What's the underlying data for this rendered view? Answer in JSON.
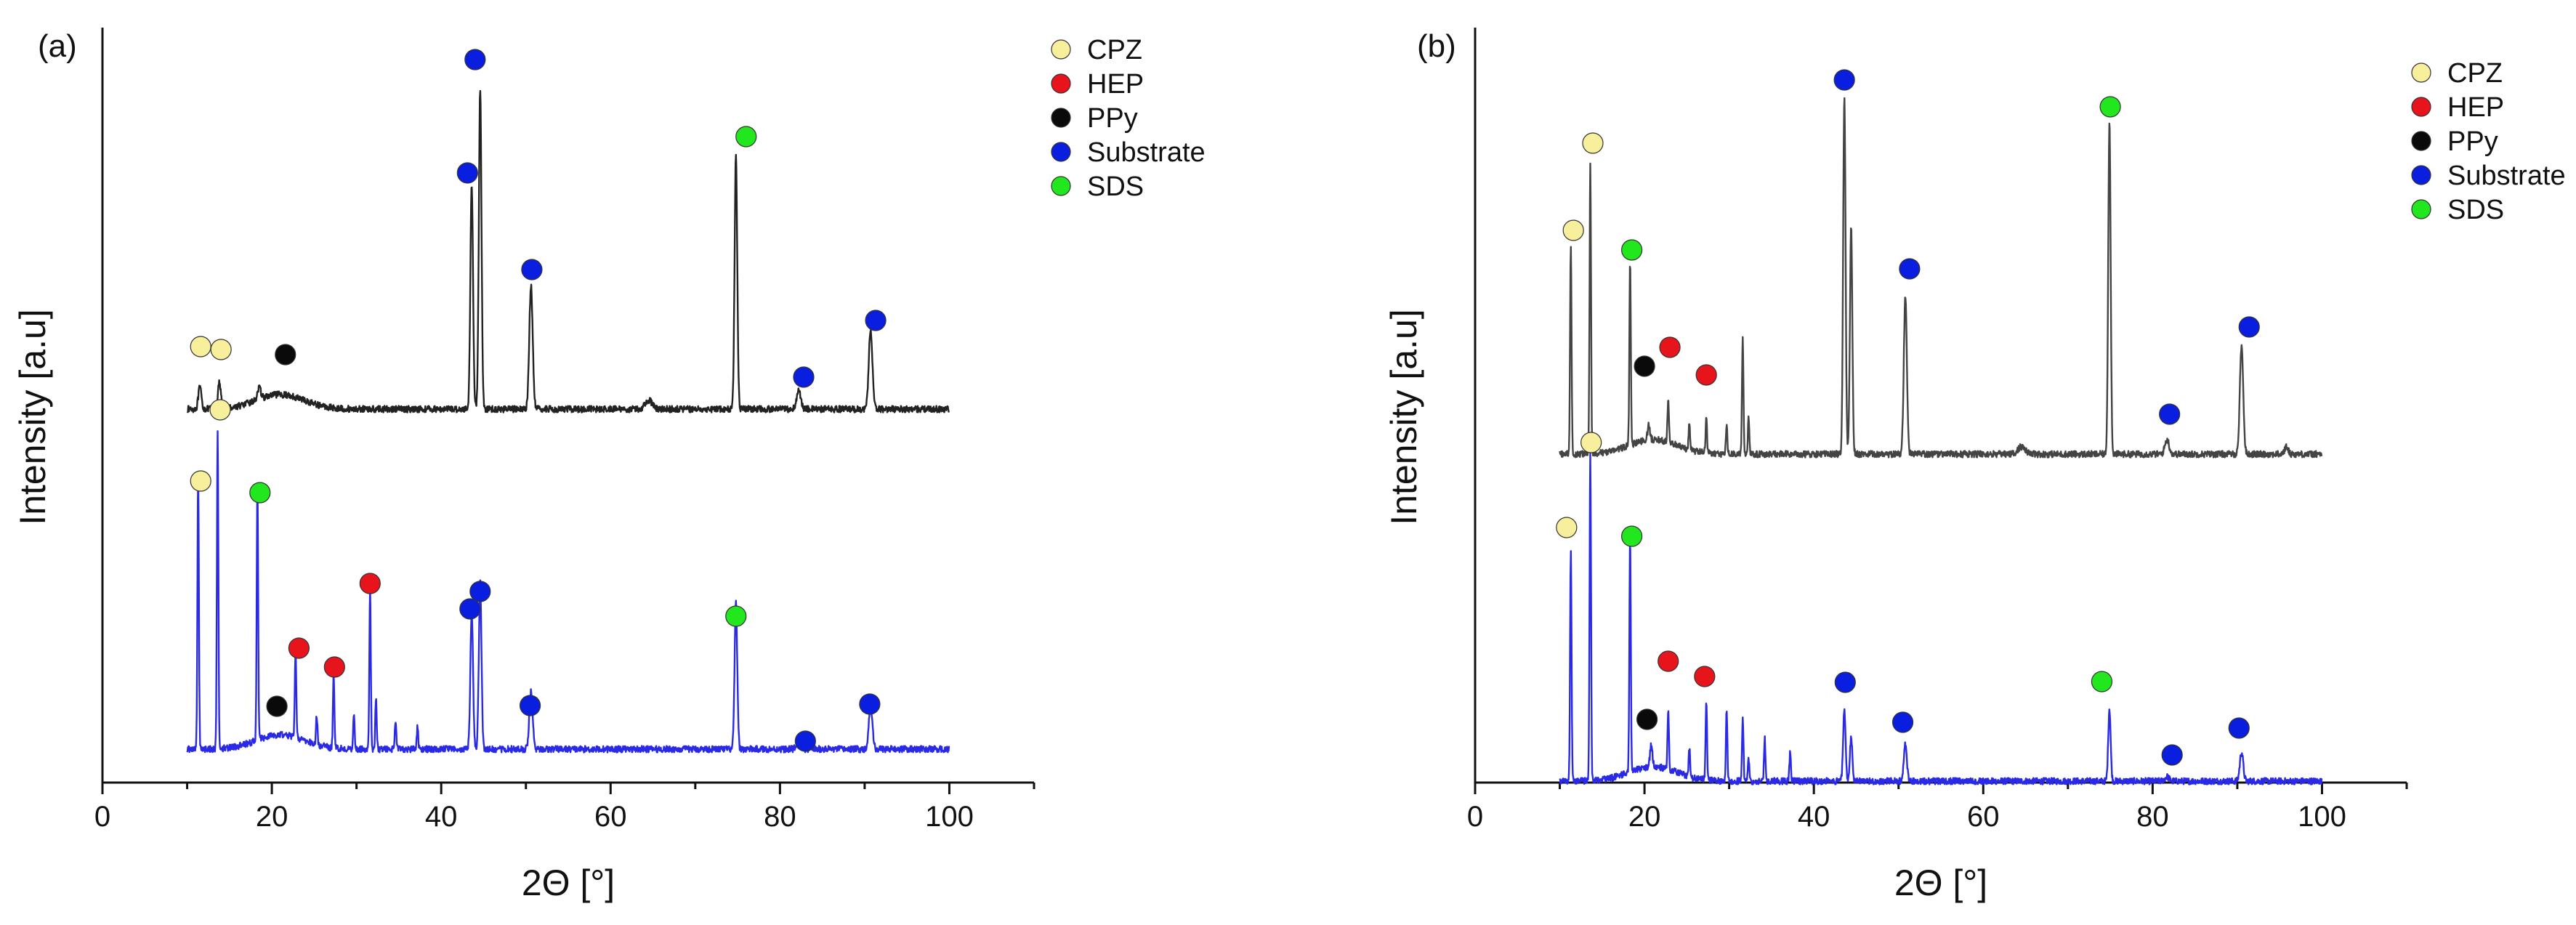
{
  "chart_data": [
    {
      "type": "line",
      "panel_label": "(a)",
      "xlabel": "2Θ [°]",
      "ylabel": "Intensity [a.u]",
      "xlim": [
        0,
        110
      ],
      "xticks": [
        0,
        20,
        40,
        60,
        80,
        100
      ],
      "ylim": [
        0,
        1
      ],
      "legend": {
        "position": "top-right",
        "entries": [
          {
            "label": "CPZ",
            "color": "#f7ef9c"
          },
          {
            "label": "HEP",
            "color": "#e8141c"
          },
          {
            "label": "PPy",
            "color": "#0a0a0a"
          },
          {
            "label": "Substrate",
            "color": "#0a1ee0"
          },
          {
            "label": "SDS",
            "color": "#22e61e"
          }
        ]
      },
      "series": [
        {
          "name": "top trace",
          "color": "#222222",
          "baseline": 0.512,
          "xrange": [
            10,
            100
          ],
          "peaks": [
            {
              "x": 11.5,
              "h": 0.03,
              "w": 0.25
            },
            {
              "x": 13.8,
              "h": 0.035,
              "w": 0.25
            },
            {
              "x": 18.5,
              "h": 0.015,
              "w": 0.3
            },
            {
              "x": 43.6,
              "h": 0.31,
              "w": 0.22
            },
            {
              "x": 44.6,
              "h": 0.44,
              "w": 0.22
            },
            {
              "x": 50.6,
              "h": 0.17,
              "w": 0.28
            },
            {
              "x": 64.5,
              "h": 0.012,
              "w": 0.6
            },
            {
              "x": 74.8,
              "h": 0.35,
              "w": 0.22
            },
            {
              "x": 82.2,
              "h": 0.025,
              "w": 0.35
            },
            {
              "x": 90.7,
              "h": 0.11,
              "w": 0.3
            }
          ]
        },
        {
          "name": "bottom trace",
          "color": "#2a2ae6",
          "baseline": 0.044,
          "xrange": [
            10,
            100
          ],
          "peaks": [
            {
              "x": 11.3,
              "h": 0.38,
              "w": 0.12
            },
            {
              "x": 13.6,
              "h": 0.44,
              "w": 0.12
            },
            {
              "x": 18.3,
              "h": 0.35,
              "w": 0.12
            },
            {
              "x": 22.8,
              "h": 0.12,
              "w": 0.12
            },
            {
              "x": 25.3,
              "h": 0.04,
              "w": 0.12
            },
            {
              "x": 27.3,
              "h": 0.1,
              "w": 0.12
            },
            {
              "x": 29.7,
              "h": 0.05,
              "w": 0.12
            },
            {
              "x": 31.6,
              "h": 0.22,
              "w": 0.12
            },
            {
              "x": 32.3,
              "h": 0.07,
              "w": 0.12
            },
            {
              "x": 34.6,
              "h": 0.04,
              "w": 0.12
            },
            {
              "x": 37.2,
              "h": 0.03,
              "w": 0.12
            },
            {
              "x": 43.6,
              "h": 0.19,
              "w": 0.22
            },
            {
              "x": 44.6,
              "h": 0.23,
              "w": 0.22
            },
            {
              "x": 50.6,
              "h": 0.08,
              "w": 0.28
            },
            {
              "x": 74.8,
              "h": 0.2,
              "w": 0.22
            },
            {
              "x": 82.2,
              "h": 0.012,
              "w": 0.35
            },
            {
              "x": 90.7,
              "h": 0.06,
              "w": 0.3
            }
          ]
        }
      ],
      "markers": [
        {
          "phase": "CPZ",
          "x": 11.6,
          "y": 0.598
        },
        {
          "phase": "CPZ",
          "x": 14.0,
          "y": 0.594
        },
        {
          "phase": "PPy",
          "x": 21.6,
          "y": 0.587
        },
        {
          "phase": "Substrate",
          "x": 44.0,
          "y": 0.993
        },
        {
          "phase": "Substrate",
          "x": 43.1,
          "y": 0.837
        },
        {
          "phase": "Substrate",
          "x": 50.7,
          "y": 0.704
        },
        {
          "phase": "SDS",
          "x": 76.0,
          "y": 0.887
        },
        {
          "phase": "Substrate",
          "x": 82.8,
          "y": 0.556
        },
        {
          "phase": "Substrate",
          "x": 91.3,
          "y": 0.634
        },
        {
          "phase": "CPZ",
          "x": 13.9,
          "y": 0.511
        },
        {
          "phase": "CPZ",
          "x": 11.6,
          "y": 0.413
        },
        {
          "phase": "SDS",
          "x": 18.6,
          "y": 0.397
        },
        {
          "phase": "HEP",
          "x": 31.6,
          "y": 0.272
        },
        {
          "phase": "HEP",
          "x": 23.2,
          "y": 0.183
        },
        {
          "phase": "HEP",
          "x": 27.4,
          "y": 0.157
        },
        {
          "phase": "PPy",
          "x": 20.6,
          "y": 0.103
        },
        {
          "phase": "Substrate",
          "x": 44.6,
          "y": 0.261
        },
        {
          "phase": "Substrate",
          "x": 43.4,
          "y": 0.237
        },
        {
          "phase": "SDS",
          "x": 74.8,
          "y": 0.227
        },
        {
          "phase": "Substrate",
          "x": 50.5,
          "y": 0.104
        },
        {
          "phase": "Substrate",
          "x": 83.0,
          "y": 0.055
        },
        {
          "phase": "Substrate",
          "x": 90.6,
          "y": 0.106
        }
      ]
    },
    {
      "type": "line",
      "panel_label": "(b)",
      "xlabel": "2Θ [°]",
      "ylabel": "Intensity [a.u]",
      "xlim": [
        0,
        110
      ],
      "xticks": [
        0,
        20,
        40,
        60,
        80,
        100
      ],
      "ylim": [
        0,
        1
      ],
      "legend": {
        "position": "top-right",
        "entries": [
          {
            "label": "CPZ",
            "color": "#f7ef9c"
          },
          {
            "label": "HEP",
            "color": "#e8141c"
          },
          {
            "label": "PPy",
            "color": "#0a0a0a"
          },
          {
            "label": "Substrate",
            "color": "#0a1ee0"
          },
          {
            "label": "SDS",
            "color": "#22e61e"
          }
        ]
      },
      "series": [
        {
          "name": "top trace",
          "color": "#444444",
          "baseline": 0.45,
          "xrange": [
            10,
            100
          ],
          "peaks": [
            {
              "x": 11.3,
              "h": 0.29,
              "w": 0.12
            },
            {
              "x": 13.6,
              "h": 0.4,
              "w": 0.12
            },
            {
              "x": 18.3,
              "h": 0.25,
              "w": 0.12
            },
            {
              "x": 20.5,
              "h": 0.02,
              "w": 0.2
            },
            {
              "x": 22.8,
              "h": 0.06,
              "w": 0.12
            },
            {
              "x": 25.3,
              "h": 0.035,
              "w": 0.12
            },
            {
              "x": 27.3,
              "h": 0.05,
              "w": 0.12
            },
            {
              "x": 29.7,
              "h": 0.04,
              "w": 0.12
            },
            {
              "x": 31.6,
              "h": 0.16,
              "w": 0.12
            },
            {
              "x": 32.3,
              "h": 0.05,
              "w": 0.12
            },
            {
              "x": 43.6,
              "h": 0.49,
              "w": 0.2
            },
            {
              "x": 44.4,
              "h": 0.31,
              "w": 0.2
            },
            {
              "x": 50.8,
              "h": 0.22,
              "w": 0.25
            },
            {
              "x": 64.5,
              "h": 0.01,
              "w": 0.6
            },
            {
              "x": 74.9,
              "h": 0.46,
              "w": 0.2
            },
            {
              "x": 81.7,
              "h": 0.02,
              "w": 0.35
            },
            {
              "x": 90.5,
              "h": 0.15,
              "w": 0.28
            },
            {
              "x": 95.8,
              "h": 0.01,
              "w": 0.3
            }
          ]
        },
        {
          "name": "bottom trace",
          "color": "#2a2ae6",
          "baseline": 0.0,
          "xrange": [
            10,
            100
          ],
          "peaks": [
            {
              "x": 11.3,
              "h": 0.32,
              "w": 0.12
            },
            {
              "x": 13.6,
              "h": 0.45,
              "w": 0.12
            },
            {
              "x": 18.3,
              "h": 0.32,
              "w": 0.12
            },
            {
              "x": 20.8,
              "h": 0.03,
              "w": 0.2
            },
            {
              "x": 22.8,
              "h": 0.08,
              "w": 0.12
            },
            {
              "x": 25.3,
              "h": 0.04,
              "w": 0.12
            },
            {
              "x": 27.3,
              "h": 0.11,
              "w": 0.12
            },
            {
              "x": 29.7,
              "h": 0.1,
              "w": 0.12
            },
            {
              "x": 31.6,
              "h": 0.09,
              "w": 0.12
            },
            {
              "x": 32.3,
              "h": 0.03,
              "w": 0.12
            },
            {
              "x": 34.2,
              "h": 0.06,
              "w": 0.12
            },
            {
              "x": 37.2,
              "h": 0.04,
              "w": 0.12
            },
            {
              "x": 43.6,
              "h": 0.1,
              "w": 0.2
            },
            {
              "x": 44.4,
              "h": 0.06,
              "w": 0.2
            },
            {
              "x": 50.8,
              "h": 0.05,
              "w": 0.25
            },
            {
              "x": 74.9,
              "h": 0.1,
              "w": 0.2
            },
            {
              "x": 81.7,
              "h": 0.006,
              "w": 0.35
            },
            {
              "x": 90.5,
              "h": 0.04,
              "w": 0.28
            }
          ]
        }
      ],
      "markers": [
        {
          "phase": "CPZ",
          "x": 13.9,
          "y": 0.878
        },
        {
          "phase": "CPZ",
          "x": 11.6,
          "y": 0.758
        },
        {
          "phase": "SDS",
          "x": 18.5,
          "y": 0.731
        },
        {
          "phase": "HEP",
          "x": 23.0,
          "y": 0.597
        },
        {
          "phase": "PPy",
          "x": 20.0,
          "y": 0.571
        },
        {
          "phase": "HEP",
          "x": 27.3,
          "y": 0.559
        },
        {
          "phase": "Substrate",
          "x": 43.6,
          "y": 0.965
        },
        {
          "phase": "SDS",
          "x": 75.0,
          "y": 0.928
        },
        {
          "phase": "Substrate",
          "x": 51.3,
          "y": 0.705
        },
        {
          "phase": "Substrate",
          "x": 82.0,
          "y": 0.505
        },
        {
          "phase": "Substrate",
          "x": 91.4,
          "y": 0.625
        },
        {
          "phase": "CPZ",
          "x": 13.7,
          "y": 0.466
        },
        {
          "phase": "CPZ",
          "x": 10.8,
          "y": 0.349
        },
        {
          "phase": "SDS",
          "x": 18.5,
          "y": 0.337
        },
        {
          "phase": "HEP",
          "x": 22.8,
          "y": 0.165
        },
        {
          "phase": "HEP",
          "x": 27.1,
          "y": 0.144
        },
        {
          "phase": "PPy",
          "x": 20.3,
          "y": 0.085
        },
        {
          "phase": "Substrate",
          "x": 43.7,
          "y": 0.136
        },
        {
          "phase": "Substrate",
          "x": 50.5,
          "y": 0.081
        },
        {
          "phase": "SDS",
          "x": 74.0,
          "y": 0.137
        },
        {
          "phase": "Substrate",
          "x": 82.3,
          "y": 0.036
        },
        {
          "phase": "Substrate",
          "x": 90.2,
          "y": 0.073
        }
      ]
    }
  ]
}
